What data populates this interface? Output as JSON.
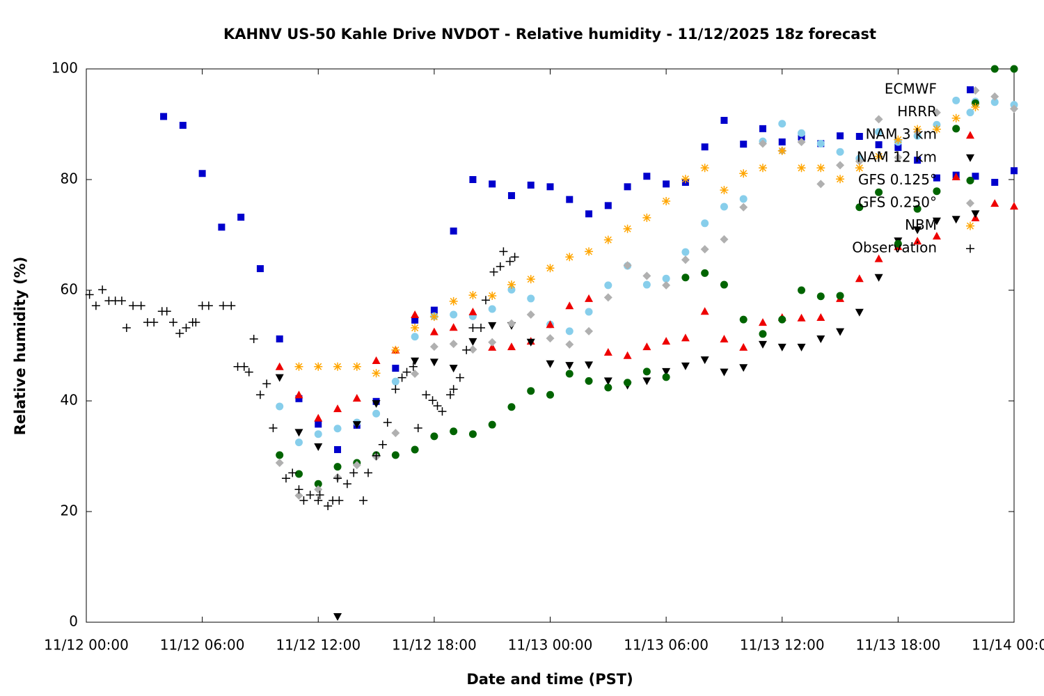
{
  "chart_data": {
    "type": "scatter",
    "title": "KAHNV US-50 Kahle Drive NVDOT - Relative humidity - 11/12/2025 18z forecast",
    "x_label": "Date and time (PST)",
    "y_label": "Relative humidity (%)",
    "xlim": [
      "11/12 00:00",
      "11/14 00:00"
    ],
    "xticks": [
      "11/12 00:00",
      "11/12 06:00",
      "11/12 12:00",
      "11/12 18:00",
      "11/13 00:00",
      "11/13 06:00",
      "11/13 12:00",
      "11/13 18:00",
      "11/14 00:00"
    ],
    "ylim": [
      0,
      100
    ],
    "yticks": [
      0,
      20,
      40,
      60,
      80,
      100
    ],
    "legend": "upper right",
    "grid": false,
    "x": [
      "11/12 04:00",
      "11/12 05:00",
      "11/12 06:00",
      "11/12 07:00",
      "11/12 08:00",
      "11/12 09:00",
      "11/12 10:00",
      "11/12 11:00",
      "11/12 12:00",
      "11/12 13:00",
      "11/12 14:00",
      "11/12 15:00",
      "11/12 16:00",
      "11/12 17:00",
      "11/12 18:00",
      "11/12 19:00",
      "11/12 20:00",
      "11/12 21:00",
      "11/12 22:00",
      "11/12 23:00",
      "11/13 00:00",
      "11/13 01:00",
      "11/13 02:00",
      "11/13 03:00",
      "11/13 04:00",
      "11/13 05:00",
      "11/13 06:00",
      "11/13 07:00",
      "11/13 08:00",
      "11/13 09:00",
      "11/13 10:00",
      "11/13 11:00",
      "11/13 12:00",
      "11/13 13:00",
      "11/13 14:00",
      "11/13 15:00",
      "11/13 16:00",
      "11/13 17:00",
      "11/13 18:00",
      "11/13 19:00",
      "11/13 20:00",
      "11/13 21:00",
      "11/13 22:00",
      "11/13 23:00",
      "11/14 00:00"
    ],
    "series": [
      {
        "name": "ECMWF",
        "color": "#0000cc",
        "marker": "square",
        "values": [
          91.4,
          89.8,
          81.1,
          71.4,
          73.2,
          63.9,
          51.2,
          40.4,
          35.8,
          31.2,
          35.6,
          39.9,
          45.9,
          54.6,
          56.4,
          70.7,
          80.0,
          79.2,
          77.1,
          79.0,
          78.7,
          76.4,
          73.8,
          75.3,
          78.7,
          80.6,
          79.2,
          79.5,
          85.9,
          90.7,
          86.4,
          89.2,
          86.8,
          87.7,
          86.5,
          87.9,
          87.8,
          86.3,
          85.8,
          83.5,
          80.3,
          80.8,
          80.6,
          79.5,
          81.6
        ]
      },
      {
        "name": "HRRR",
        "color": "#87ceeb",
        "marker": "circle",
        "values": [
          null,
          null,
          null,
          null,
          null,
          null,
          39.0,
          32.5,
          34.0,
          35.0,
          36.1,
          37.7,
          43.5,
          51.6,
          55.3,
          55.6,
          55.3,
          56.6,
          60.1,
          58.5,
          53.8,
          52.6,
          56.1,
          60.9,
          64.4,
          61.0,
          62.1,
          66.9,
          72.1,
          75.1,
          76.5,
          86.9,
          90.1,
          88.4,
          86.5,
          85.0,
          83.8,
          88.6,
          86.8,
          87.9,
          89.9,
          94.3,
          94.1,
          94.0,
          93.5
        ]
      },
      {
        "name": "NAM 3 km",
        "color": "#ee0000",
        "marker": "triangle-up",
        "values": [
          null,
          null,
          null,
          null,
          null,
          null,
          46.2,
          41.1,
          36.9,
          38.6,
          40.5,
          47.3,
          49.2,
          55.6,
          52.5,
          53.3,
          56.1,
          49.7,
          49.8,
          50.8,
          53.8,
          57.2,
          58.5,
          48.8,
          48.2,
          49.8,
          50.8,
          51.4,
          56.2,
          51.2,
          49.7,
          54.2,
          55.1,
          55.0,
          55.1,
          58.5,
          62.1,
          65.7,
          67.9,
          68.9,
          69.8,
          80.5,
          73.1,
          75.7,
          75.2
        ]
      },
      {
        "name": "NAM 12 km",
        "color": "#000000",
        "marker": "triangle-down",
        "values": [
          null,
          null,
          null,
          null,
          null,
          null,
          44.2,
          34.3,
          31.7,
          1.0,
          35.7,
          39.5,
          null,
          47.2,
          47.0,
          45.9,
          50.7,
          53.6,
          53.6,
          50.6,
          46.7,
          46.4,
          46.5,
          43.6,
          42.8,
          43.6,
          45.3,
          46.3,
          47.4,
          45.2,
          46.0,
          50.2,
          49.7,
          49.7,
          51.2,
          52.5,
          56.0,
          62.3,
          68.9,
          70.9,
          72.5,
          72.8,
          73.8,
          null,
          null
        ]
      },
      {
        "name": "GFS 0.125°",
        "color": "#006400",
        "marker": "circle",
        "values": [
          null,
          null,
          null,
          null,
          null,
          null,
          30.2,
          26.8,
          25.0,
          28.1,
          28.8,
          30.2,
          30.2,
          31.2,
          33.6,
          34.5,
          34.0,
          35.7,
          38.9,
          41.8,
          41.1,
          44.9,
          43.6,
          42.4,
          43.3,
          45.3,
          44.3,
          62.3,
          63.1,
          61.0,
          54.7,
          52.1,
          54.7,
          60.0,
          58.9,
          59.0,
          75.0,
          77.7,
          68.4,
          74.7,
          77.9,
          89.2,
          93.8,
          100,
          100
        ]
      },
      {
        "name": "GFS 0.250°",
        "color": "#b0b0b0",
        "marker": "diamond",
        "values": [
          null,
          null,
          null,
          null,
          null,
          null,
          28.8,
          22.9,
          24.0,
          26.2,
          28.4,
          29.9,
          34.2,
          44.9,
          49.8,
          50.3,
          49.3,
          50.6,
          54.0,
          55.6,
          51.3,
          50.2,
          52.6,
          58.7,
          64.5,
          62.6,
          60.9,
          65.5,
          67.4,
          69.2,
          75.0,
          86.5,
          85.2,
          86.8,
          79.2,
          82.6,
          83.3,
          90.9,
          84.0,
          88.6,
          92.1,
          null,
          96.1,
          95.0,
          92.8
        ]
      },
      {
        "name": "NBM",
        "color": "#ffa500",
        "marker": "star",
        "values": [
          null,
          null,
          null,
          null,
          null,
          null,
          null,
          46.2,
          46.2,
          46.2,
          46.2,
          45.0,
          49.2,
          53.2,
          55.2,
          58.0,
          59.1,
          59.0,
          61.0,
          62.0,
          64.0,
          66.0,
          67.0,
          69.1,
          71.1,
          73.1,
          76.1,
          80.1,
          82.1,
          78.1,
          81.1,
          82.1,
          85.2,
          82.1,
          82.1,
          80.1,
          82.1,
          84.2,
          87.2,
          89.1,
          89.1,
          91.1,
          93.1,
          null,
          null
        ]
      },
      {
        "name": "Observation",
        "color": "#000000",
        "marker": "plus",
        "x": [
          "11/12 00:10",
          "11/12 00:30",
          "11/12 00:50",
          "11/12 01:10",
          "11/12 01:30",
          "11/12 01:50",
          "11/12 02:05",
          "11/12 02:25",
          "11/12 02:50",
          "11/12 03:10",
          "11/12 03:30",
          "11/12 03:55",
          "11/12 04:10",
          "11/12 04:30",
          "11/12 04:50",
          "11/12 05:10",
          "11/12 05:30",
          "11/12 05:40",
          "11/12 06:00",
          "11/12 06:20",
          "11/12 07:05",
          "11/12 07:30",
          "11/12 07:50",
          "11/12 08:10",
          "11/12 08:25",
          "11/12 08:40",
          "11/12 09:00",
          "11/12 09:20",
          "11/12 09:40",
          "11/12 10:20",
          "11/12 10:40",
          "11/12 11:00",
          "11/12 11:15",
          "11/12 11:35",
          "11/12 12:00",
          "11/12 12:05",
          "11/12 12:30",
          "11/12 12:45",
          "11/12 13:00",
          "11/12 13:05",
          "11/12 13:30",
          "11/12 13:50",
          "11/12 14:20",
          "11/12 14:35",
          "11/12 15:00",
          "11/12 15:20",
          "11/12 15:35",
          "11/12 16:00",
          "11/12 16:20",
          "11/12 16:35",
          "11/12 16:55",
          "11/12 17:10",
          "11/12 17:35",
          "11/12 17:55",
          "11/12 18:10",
          "11/12 18:25",
          "11/12 18:50",
          "11/12 19:00",
          "11/12 19:20",
          "11/12 19:40",
          "11/12 20:00",
          "11/12 20:25",
          "11/12 20:40",
          "11/12 21:05",
          "11/12 21:25",
          "11/12 21:35",
          "11/12 21:55",
          "11/12 22:10"
        ],
        "values": [
          59.2,
          57.2,
          60.1,
          58.1,
          58.1,
          58.1,
          53.2,
          57.2,
          57.2,
          54.2,
          54.2,
          56.2,
          56.2,
          54.2,
          52.2,
          53.2,
          54.2,
          54.2,
          57.2,
          57.2,
          57.2,
          57.2,
          46.2,
          46.2,
          45.2,
          51.2,
          41.1,
          43.1,
          35.1,
          26.0,
          27.0,
          24.0,
          22.0,
          23.0,
          22.0,
          23.0,
          21.0,
          22.0,
          26.0,
          22.0,
          25.0,
          27.0,
          22.0,
          27.0,
          30.1,
          32.1,
          36.1,
          42.1,
          44.2,
          45.2,
          46.2,
          35.1,
          41.1,
          40.1,
          39.1,
          38.1,
          41.1,
          42.1,
          44.2,
          49.2,
          53.2,
          53.2,
          58.2,
          63.3,
          64.3,
          67.0,
          65.2,
          66.0
        ]
      }
    ]
  }
}
